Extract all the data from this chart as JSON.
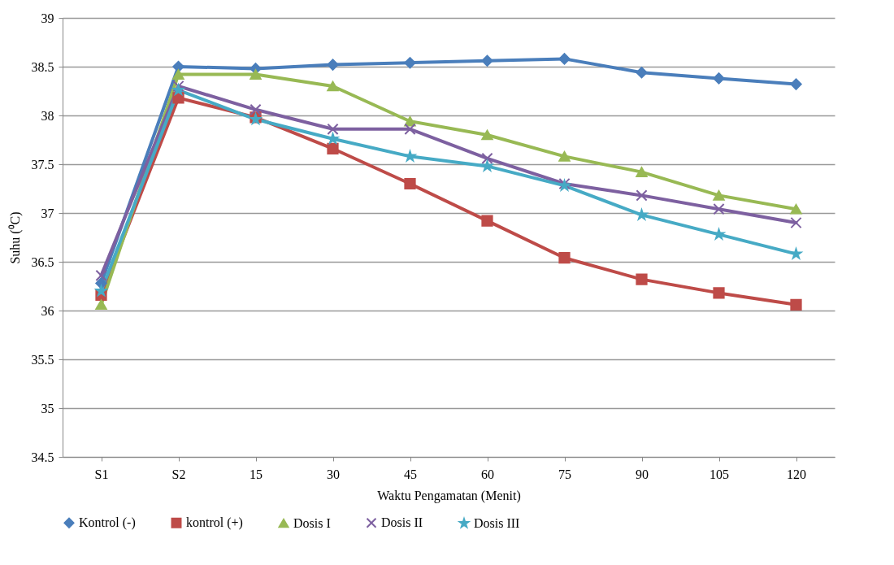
{
  "chart_data": {
    "type": "line",
    "xlabel": "Waktu Pengamatan (Menit)",
    "ylabel": "Suhu (⁰C)",
    "categories": [
      "S1",
      "S2",
      "15",
      "30",
      "45",
      "60",
      "75",
      "90",
      "105",
      "120"
    ],
    "ylim": [
      34.5,
      39
    ],
    "yticks": [
      34.5,
      35,
      35.5,
      36,
      36.5,
      37,
      37.5,
      38,
      38.5,
      39
    ],
    "grid": "y",
    "legend": "bottom",
    "series": [
      {
        "name": "Kontrol (-)",
        "color": "#4a7ebb",
        "marker": "diamond",
        "values": [
          36.28,
          38.5,
          38.48,
          38.52,
          38.54,
          38.56,
          38.58,
          38.44,
          38.38,
          38.32
        ]
      },
      {
        "name": "kontrol (+)",
        "color": "#be4b48",
        "marker": "square",
        "values": [
          36.16,
          38.18,
          37.98,
          37.66,
          37.3,
          36.92,
          36.54,
          36.32,
          36.18,
          36.06
        ]
      },
      {
        "name": "Dosis I",
        "color": "#98b954",
        "marker": "triangle",
        "values": [
          36.06,
          38.42,
          38.42,
          38.3,
          37.94,
          37.8,
          37.58,
          37.42,
          37.18,
          37.04
        ]
      },
      {
        "name": "Dosis II",
        "color": "#7d60a0",
        "marker": "cross",
        "values": [
          36.36,
          38.3,
          38.06,
          37.86,
          37.86,
          37.56,
          37.3,
          37.18,
          37.04,
          36.9
        ]
      },
      {
        "name": "Dosis III",
        "color": "#46aac5",
        "marker": "star",
        "values": [
          36.2,
          38.26,
          37.96,
          37.76,
          37.58,
          37.48,
          37.28,
          36.98,
          36.78,
          36.58
        ]
      }
    ]
  }
}
